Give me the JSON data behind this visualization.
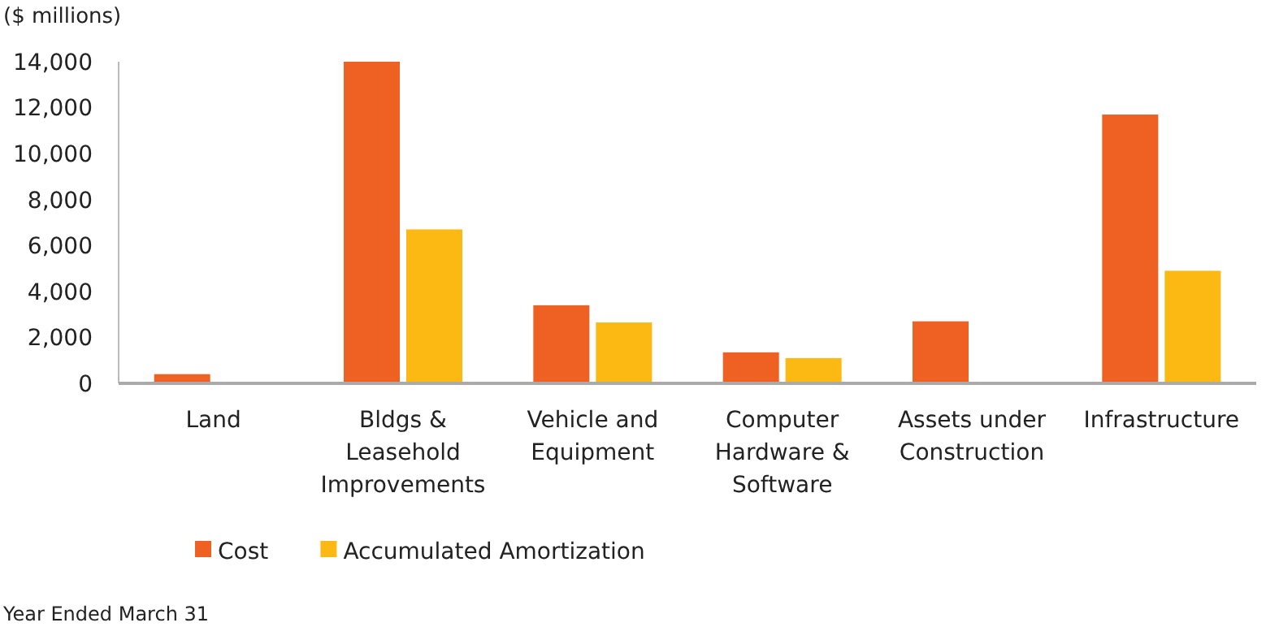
{
  "chart_data": {
    "type": "bar",
    "ylabel": "($ millions)",
    "categories": [
      "Land",
      "Bldgs & Leasehold Improvements",
      "Vehicle and Equipment",
      "Computer Hardware & Software",
      "Assets under Construction",
      "Infrastructure"
    ],
    "series": [
      {
        "name": "Cost",
        "color": "#ee6123",
        "values": [
          400,
          14000,
          3400,
          1350,
          2700,
          11700
        ]
      },
      {
        "name": "Accumulated Amortization",
        "color": "#fdb913",
        "values": [
          null,
          6700,
          2650,
          1100,
          null,
          4900
        ]
      }
    ],
    "ylim": [
      0,
      14000
    ],
    "yticks": [
      {
        "value": 0,
        "label": "0"
      },
      {
        "value": 2000,
        "label": "2,000"
      },
      {
        "value": 4000,
        "label": "4,000"
      },
      {
        "value": 6000,
        "label": "6,000"
      },
      {
        "value": 8000,
        "label": "8,000"
      },
      {
        "value": 10000,
        "label": "10,000"
      },
      {
        "value": 12000,
        "label": "12,000"
      },
      {
        "value": 14000,
        "label": "14,000"
      }
    ],
    "grid": false,
    "legend": "bottom left",
    "annotations": [
      "Year Ended March 31"
    ]
  }
}
